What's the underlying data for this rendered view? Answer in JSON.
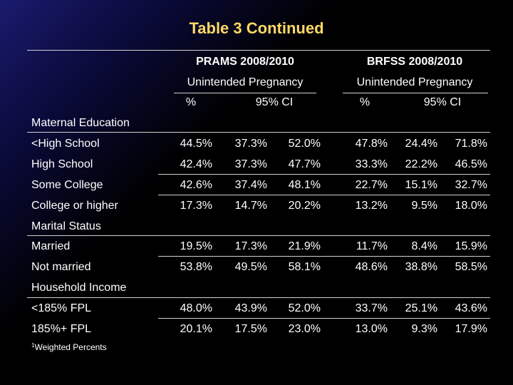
{
  "title": "Table 3 Continued",
  "header": {
    "prams": "PRAMS 2008/2010",
    "brfss": "BRFSS 2008/2010",
    "prams_sub": "Unintended Pregnancy",
    "brfss_sub": "Unintended Pregnancy",
    "pct": "%",
    "ci": "95% CI",
    "pct2": "%",
    "ci2": "95% CI"
  },
  "sections": {
    "education": "Maternal Education",
    "marital": "Marital Status",
    "income": "Household Income"
  },
  "rows": [
    {
      "label": "<High School",
      "p": "44.5%",
      "plo": "37.3%",
      "phi": "52.0%",
      "b": "47.8%",
      "blo": "24.4%",
      "bhi": "71.8%"
    },
    {
      "label": "High School",
      "p": "42.4%",
      "plo": "37.3%",
      "phi": "47.7%",
      "b": "33.3%",
      "blo": "22.2%",
      "bhi": "46.5%"
    },
    {
      "label": "Some College",
      "p": "42.6%",
      "plo": "37.4%",
      "phi": "48.1%",
      "b": "22.7%",
      "blo": "15.1%",
      "bhi": "32.7%"
    },
    {
      "label": "College or higher",
      "p": "17.3%",
      "plo": "14.7%",
      "phi": "20.2%",
      "b": "13.2%",
      "blo": "9.5%",
      "bhi": "18.0%"
    },
    {
      "label": "Married",
      "p": "19.5%",
      "plo": "17.3%",
      "phi": "21.9%",
      "b": "11.7%",
      "blo": "8.4%",
      "bhi": "15.9%"
    },
    {
      "label": "Not married",
      "p": "53.8%",
      "plo": "49.5%",
      "phi": "58.1%",
      "b": "48.6%",
      "blo": "38.8%",
      "bhi": "58.5%"
    },
    {
      "label": "<185% FPL",
      "p": "48.0%",
      "plo": "43.9%",
      "phi": "52.0%",
      "b": "33.7%",
      "blo": "25.1%",
      "bhi": "43.6%"
    },
    {
      "label": "185%+ FPL",
      "p": "20.1%",
      "plo": "17.5%",
      "phi": "23.0%",
      "b": "13.0%",
      "blo": "9.3%",
      "bhi": "17.9%"
    }
  ],
  "footnote": {
    "mark": "1",
    "text": "Weighted Percents"
  }
}
